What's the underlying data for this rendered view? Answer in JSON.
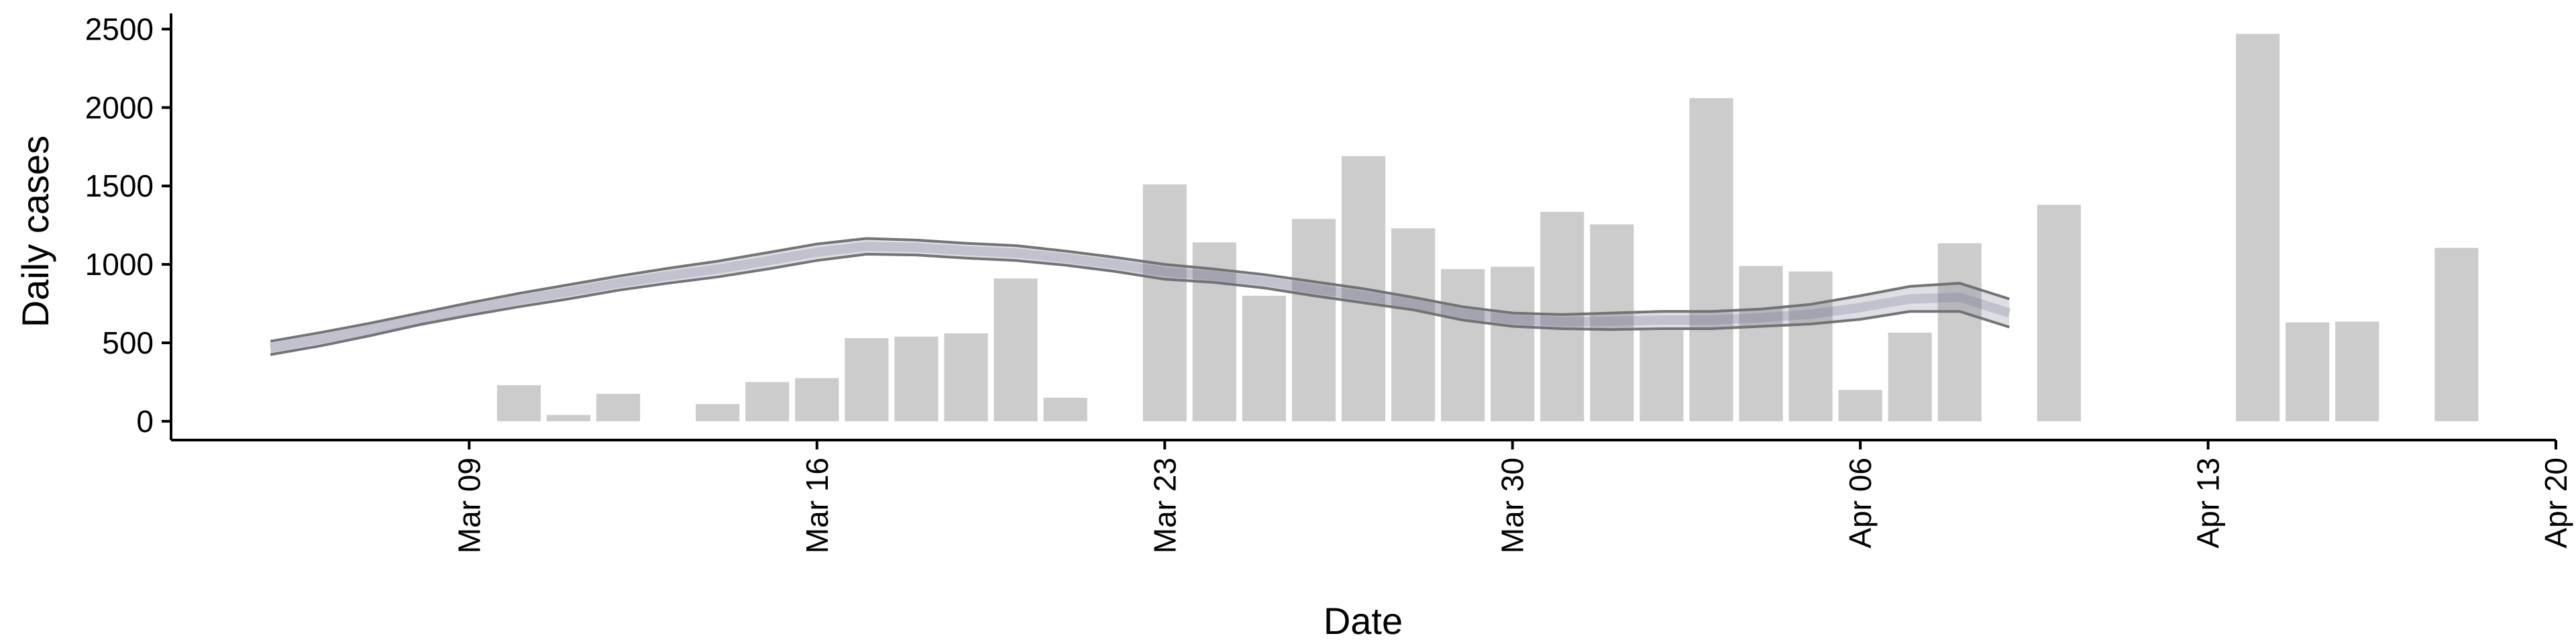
{
  "chart_data": {
    "type": "bar",
    "xlabel": "Date",
    "ylabel": "Daily cases",
    "xlim": [
      "2020-03-03",
      "2020-04-20"
    ],
    "ylim": [
      -120,
      2600
    ],
    "x_ticks": [
      {
        "date": "2020-03-09",
        "label": "Mar 09"
      },
      {
        "date": "2020-03-16",
        "label": "Mar 16"
      },
      {
        "date": "2020-03-23",
        "label": "Mar 23"
      },
      {
        "date": "2020-03-30",
        "label": "Mar 30"
      },
      {
        "date": "2020-04-06",
        "label": "Apr 06"
      },
      {
        "date": "2020-04-13",
        "label": "Apr 13"
      },
      {
        "date": "2020-04-20",
        "label": "Apr 20"
      }
    ],
    "y_ticks": [
      0,
      500,
      1000,
      1500,
      2000,
      2500
    ],
    "bar_color": "#cccccc",
    "band_color": "#6a6d86",
    "outline_color": "#6e6e6e",
    "bars": {
      "x": [
        "2020-03-10",
        "2020-03-11",
        "2020-03-12",
        "2020-03-14",
        "2020-03-15",
        "2020-03-16",
        "2020-03-17",
        "2020-03-18",
        "2020-03-19",
        "2020-03-20",
        "2020-03-21",
        "2020-03-23",
        "2020-03-24",
        "2020-03-25",
        "2020-03-26",
        "2020-03-27",
        "2020-03-28",
        "2020-03-29",
        "2020-03-30",
        "2020-03-31",
        "2020-04-01",
        "2020-04-02",
        "2020-04-03",
        "2020-04-04",
        "2020-04-05",
        "2020-04-06",
        "2020-04-07",
        "2020-04-08",
        "2020-04-10",
        "2020-04-14",
        "2020-04-15",
        "2020-04-16",
        "2020-04-18"
      ],
      "values": [
        230,
        40,
        175,
        110,
        250,
        275,
        530,
        540,
        560,
        910,
        150,
        1510,
        1140,
        800,
        1290,
        1690,
        1230,
        970,
        985,
        1335,
        1255,
        580,
        2060,
        990,
        955,
        200,
        565,
        1135,
        1380,
        2470,
        630,
        635,
        1105
      ]
    },
    "estimate_band": {
      "x": [
        "2020-03-05",
        "2020-03-06",
        "2020-03-07",
        "2020-03-08",
        "2020-03-09",
        "2020-03-10",
        "2020-03-11",
        "2020-03-12",
        "2020-03-13",
        "2020-03-14",
        "2020-03-15",
        "2020-03-16",
        "2020-03-17",
        "2020-03-18",
        "2020-03-19",
        "2020-03-20",
        "2020-03-21",
        "2020-03-22",
        "2020-03-23",
        "2020-03-24",
        "2020-03-25",
        "2020-03-26",
        "2020-03-27",
        "2020-03-28",
        "2020-03-29",
        "2020-03-30",
        "2020-03-31",
        "2020-04-01",
        "2020-04-02",
        "2020-04-03",
        "2020-04-04",
        "2020-04-05",
        "2020-04-06",
        "2020-04-07",
        "2020-04-08",
        "2020-04-09"
      ],
      "upper": [
        510,
        565,
        625,
        690,
        755,
        815,
        870,
        925,
        975,
        1020,
        1075,
        1130,
        1165,
        1155,
        1135,
        1120,
        1085,
        1045,
        1000,
        970,
        935,
        890,
        845,
        790,
        730,
        690,
        680,
        690,
        700,
        700,
        715,
        745,
        800,
        860,
        880,
        780
      ],
      "lower": [
        425,
        480,
        545,
        615,
        675,
        730,
        780,
        835,
        880,
        920,
        970,
        1025,
        1065,
        1060,
        1040,
        1025,
        995,
        955,
        905,
        885,
        850,
        800,
        755,
        710,
        645,
        605,
        590,
        585,
        590,
        590,
        605,
        620,
        650,
        700,
        700,
        600
      ]
    }
  }
}
